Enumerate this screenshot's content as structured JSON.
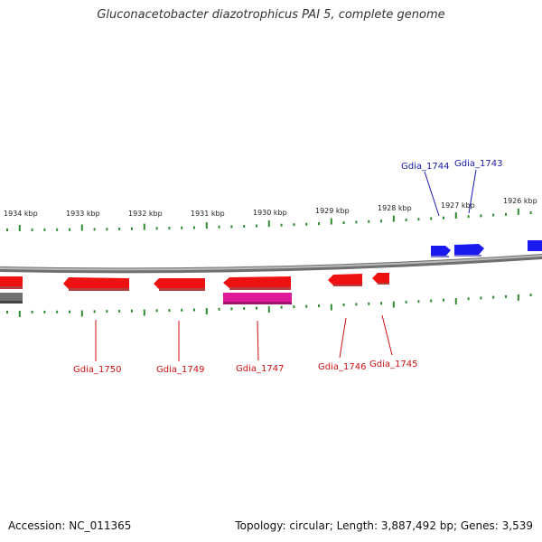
{
  "title": "Gluconacetobacter diazotrophicus PAI 5, complete genome",
  "footer": {
    "accession": "Accession: NC_011365",
    "summary": "Topology: circular; Length: 3,887,492 bp; Genes: 3,539"
  },
  "colors": {
    "backbone": "#8a8a8a",
    "tick": "#2e8b2e",
    "forward_gene": "#1a1aee",
    "reverse_gene": "#ee1111",
    "highlight_gene": "#e0199a",
    "other_feature": "#707070",
    "forward_label": "#1a1aaa",
    "reverse_label": "#cc1111"
  },
  "chart_data": {
    "type": "genome-map",
    "axis_unit": "kbp",
    "ticks": [
      "1934 kbp",
      "1933 kbp",
      "1932 kbp",
      "1931 kbp",
      "1930 kbp",
      "1929 kbp",
      "1928 kbp",
      "1927 kbp",
      "1926 kbp"
    ],
    "labeled_genes_forward": [
      "Gdia_1744",
      "Gdia_1743"
    ],
    "labeled_genes_reverse": [
      "Gdia_1750",
      "Gdia_1749",
      "Gdia_1747",
      "Gdia_1746",
      "Gdia_1745"
    ]
  }
}
